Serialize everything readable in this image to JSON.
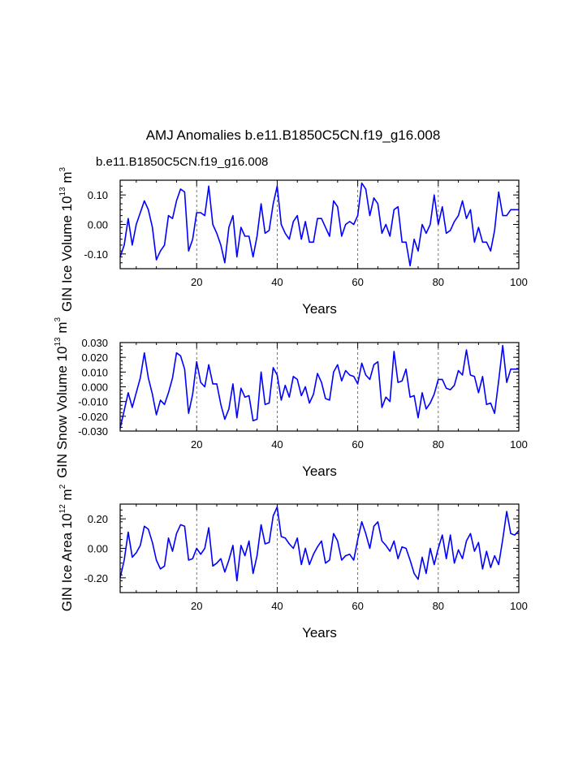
{
  "title": "AMJ Anomalies b.e11.B1850C5CN.f19_g16.008",
  "subtitle": "b.e11.B1850C5CN.f19_g16.008",
  "colors": {
    "line": "#0000ff",
    "subtitle": "#0000ff",
    "axes": "#000000",
    "grid": "#555555"
  },
  "chart_data": [
    {
      "type": "line",
      "name": "ice-volume",
      "ylabel": {
        "main": "GIN Ice Volume 10",
        "exp": "13",
        "unit": " m",
        "unit_exp": "3"
      },
      "xlabel": "Years",
      "xlim": [
        1,
        100
      ],
      "ylim": [
        -0.15,
        0.15
      ],
      "xticks": [
        20,
        40,
        60,
        80,
        100
      ],
      "xtick_labels": [
        "20",
        "40",
        "60",
        "80",
        "100"
      ],
      "yticks": [
        0.1,
        0.0,
        -0.1
      ],
      "ytick_labels": [
        "0.10",
        "0.00",
        "-0.10"
      ],
      "yminor_step": 0.02,
      "xminor_step": 5,
      "vgrid": [
        20,
        40,
        60,
        80
      ],
      "x": [
        1,
        2,
        3,
        4,
        5,
        6,
        7,
        8,
        9,
        10,
        11,
        12,
        13,
        14,
        15,
        16,
        17,
        18,
        19,
        20,
        21,
        22,
        23,
        24,
        25,
        26,
        27,
        28,
        29,
        30,
        31,
        32,
        33,
        34,
        35,
        36,
        37,
        38,
        39,
        40,
        41,
        42,
        43,
        44,
        45,
        46,
        47,
        48,
        49,
        50,
        51,
        52,
        53,
        54,
        55,
        56,
        57,
        58,
        59,
        60,
        61,
        62,
        63,
        64,
        65,
        66,
        67,
        68,
        69,
        70,
        71,
        72,
        73,
        74,
        75,
        76,
        77,
        78,
        79,
        80,
        81,
        82,
        83,
        84,
        85,
        86,
        87,
        88,
        89,
        90,
        91,
        92,
        93,
        94,
        95,
        96,
        97,
        98,
        99,
        100
      ],
      "values": [
        -0.11,
        -0.07,
        0.02,
        -0.07,
        0.0,
        0.04,
        0.08,
        0.05,
        -0.01,
        -0.12,
        -0.09,
        -0.07,
        0.03,
        0.02,
        0.08,
        0.12,
        0.11,
        -0.09,
        -0.05,
        0.04,
        0.04,
        0.03,
        0.13,
        0.0,
        -0.03,
        -0.07,
        -0.13,
        -0.01,
        0.03,
        -0.11,
        -0.01,
        -0.04,
        -0.04,
        -0.11,
        -0.04,
        0.07,
        -0.03,
        -0.02,
        0.07,
        0.13,
        0.0,
        -0.03,
        -0.05,
        0.01,
        0.03,
        -0.05,
        0.01,
        -0.06,
        -0.06,
        0.02,
        0.02,
        -0.01,
        -0.04,
        0.08,
        0.06,
        -0.04,
        0.0,
        0.01,
        0.0,
        0.03,
        0.14,
        0.12,
        0.03,
        0.09,
        0.07,
        -0.03,
        0.0,
        -0.04,
        0.05,
        0.06,
        -0.06,
        -0.06,
        -0.14,
        -0.05,
        -0.09,
        0.0,
        -0.03,
        0.0,
        0.1,
        0.0,
        0.06,
        -0.03,
        -0.02,
        0.01,
        0.03,
        0.08,
        0.02,
        0.05,
        -0.06,
        -0.01,
        -0.06,
        -0.06,
        -0.09,
        -0.02,
        0.11,
        0.03,
        0.03,
        0.05,
        0.05,
        0.05
      ]
    },
    {
      "type": "line",
      "name": "snow-volume",
      "ylabel": {
        "main": "GIN Snow Volume 10",
        "exp": "13",
        "unit": " m",
        "unit_exp": "3"
      },
      "xlabel": "Years",
      "xlim": [
        1,
        100
      ],
      "ylim": [
        -0.03,
        0.03
      ],
      "xticks": [
        20,
        40,
        60,
        80,
        100
      ],
      "xtick_labels": [
        "20",
        "40",
        "60",
        "80",
        "100"
      ],
      "yticks": [
        0.03,
        0.02,
        0.01,
        0.0,
        -0.01,
        -0.02,
        -0.03
      ],
      "ytick_labels": [
        "0.030",
        "0.020",
        "0.010",
        "0.000",
        "-0.010",
        "-0.020",
        "-0.030"
      ],
      "yminor_step": 0.0025,
      "xminor_step": 5,
      "vgrid": [
        20,
        40,
        60,
        80
      ],
      "x": [
        1,
        2,
        3,
        4,
        5,
        6,
        7,
        8,
        9,
        10,
        11,
        12,
        13,
        14,
        15,
        16,
        17,
        18,
        19,
        20,
        21,
        22,
        23,
        24,
        25,
        26,
        27,
        28,
        29,
        30,
        31,
        32,
        33,
        34,
        35,
        36,
        37,
        38,
        39,
        40,
        41,
        42,
        43,
        44,
        45,
        46,
        47,
        48,
        49,
        50,
        51,
        52,
        53,
        54,
        55,
        56,
        57,
        58,
        59,
        60,
        61,
        62,
        63,
        64,
        65,
        66,
        67,
        68,
        69,
        70,
        71,
        72,
        73,
        74,
        75,
        76,
        77,
        78,
        79,
        80,
        81,
        82,
        83,
        84,
        85,
        86,
        87,
        88,
        89,
        90,
        91,
        92,
        93,
        94,
        95,
        96,
        97,
        98,
        99,
        100
      ],
      "values": [
        -0.028,
        -0.016,
        -0.004,
        -0.014,
        -0.004,
        0.006,
        0.023,
        0.006,
        -0.005,
        -0.019,
        -0.009,
        -0.012,
        -0.004,
        0.006,
        0.023,
        0.021,
        0.012,
        -0.018,
        -0.005,
        0.017,
        0.003,
        0.0,
        0.015,
        0.002,
        0.002,
        -0.012,
        -0.022,
        -0.015,
        0.002,
        -0.021,
        -0.001,
        -0.007,
        -0.006,
        -0.023,
        -0.022,
        0.01,
        -0.012,
        -0.011,
        0.013,
        0.008,
        -0.009,
        0.001,
        -0.007,
        0.007,
        0.005,
        -0.006,
        0.0,
        -0.011,
        -0.005,
        0.009,
        0.003,
        -0.008,
        -0.009,
        0.01,
        0.015,
        0.004,
        0.011,
        0.008,
        0.007,
        0.002,
        0.016,
        0.008,
        0.005,
        0.015,
        0.017,
        -0.014,
        -0.007,
        -0.01,
        0.024,
        0.003,
        0.004,
        0.012,
        -0.007,
        -0.006,
        -0.021,
        -0.004,
        -0.015,
        -0.011,
        -0.005,
        0.005,
        0.005,
        -0.001,
        -0.002,
        0.001,
        0.011,
        0.008,
        0.025,
        0.008,
        0.007,
        -0.004,
        0.007,
        -0.012,
        -0.011,
        -0.018,
        0.004,
        0.028,
        0.003,
        0.012,
        0.012,
        0.012
      ]
    },
    {
      "type": "line",
      "name": "ice-area",
      "ylabel": {
        "main": "GIN Ice Area 10",
        "exp": "12",
        "unit": " m",
        "unit_exp": "2"
      },
      "xlabel": "Years",
      "xlim": [
        1,
        100
      ],
      "ylim": [
        -0.3,
        0.3
      ],
      "xticks": [
        20,
        40,
        60,
        80,
        100
      ],
      "xtick_labels": [
        "20",
        "40",
        "60",
        "80",
        "100"
      ],
      "yticks": [
        0.2,
        0.0,
        -0.2
      ],
      "ytick_labels": [
        "0.20",
        "0.00",
        "-0.20"
      ],
      "yminor_step": 0.04,
      "xminor_step": 5,
      "vgrid": [
        20,
        40,
        60,
        80
      ],
      "x": [
        1,
        2,
        3,
        4,
        5,
        6,
        7,
        8,
        9,
        10,
        11,
        12,
        13,
        14,
        15,
        16,
        17,
        18,
        19,
        20,
        21,
        22,
        23,
        24,
        25,
        26,
        27,
        28,
        29,
        30,
        31,
        32,
        33,
        34,
        35,
        36,
        37,
        38,
        39,
        40,
        41,
        42,
        43,
        44,
        45,
        46,
        47,
        48,
        49,
        50,
        51,
        52,
        53,
        54,
        55,
        56,
        57,
        58,
        59,
        60,
        61,
        62,
        63,
        64,
        65,
        66,
        67,
        68,
        69,
        70,
        71,
        72,
        73,
        74,
        75,
        76,
        77,
        78,
        79,
        80,
        81,
        82,
        83,
        84,
        85,
        86,
        87,
        88,
        89,
        90,
        91,
        92,
        93,
        94,
        95,
        96,
        97,
        98,
        99,
        100
      ],
      "values": [
        -0.2,
        -0.08,
        0.11,
        -0.06,
        -0.03,
        0.02,
        0.15,
        0.13,
        0.04,
        -0.08,
        -0.14,
        -0.12,
        0.07,
        -0.02,
        0.1,
        0.16,
        0.15,
        -0.08,
        -0.07,
        0.0,
        -0.04,
        0.0,
        0.14,
        -0.12,
        -0.1,
        -0.07,
        -0.16,
        -0.08,
        0.02,
        -0.22,
        0.02,
        -0.05,
        0.05,
        -0.17,
        -0.05,
        0.16,
        0.03,
        0.04,
        0.22,
        0.28,
        0.08,
        0.07,
        0.03,
        0.0,
        0.07,
        -0.11,
        0.0,
        -0.11,
        -0.04,
        0.01,
        0.05,
        -0.1,
        -0.08,
        0.1,
        0.05,
        -0.08,
        -0.05,
        -0.04,
        -0.08,
        0.06,
        0.18,
        0.1,
        0.0,
        0.15,
        0.18,
        0.05,
        0.02,
        -0.02,
        0.05,
        -0.07,
        0.01,
        0.0,
        -0.08,
        -0.17,
        -0.21,
        -0.06,
        -0.17,
        0.0,
        -0.11,
        0.0,
        0.09,
        -0.07,
        0.09,
        -0.1,
        -0.01,
        -0.07,
        0.05,
        0.1,
        -0.02,
        0.04,
        -0.14,
        -0.02,
        -0.13,
        -0.05,
        -0.11,
        0.06,
        0.25,
        0.1,
        0.09,
        0.12
      ]
    }
  ]
}
